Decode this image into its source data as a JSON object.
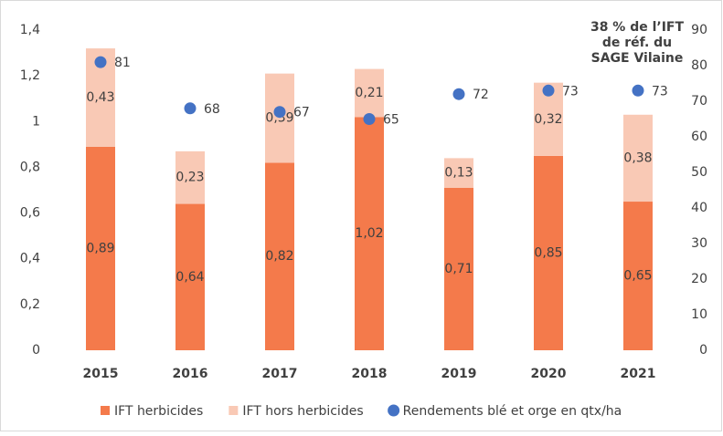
{
  "chart_data": {
    "type": "bar",
    "stacked": true,
    "categories": [
      "2015",
      "2016",
      "2017",
      "2018",
      "2019",
      "2020",
      "2021"
    ],
    "series": [
      {
        "name": "IFT herbicides",
        "color": "#f47a4b",
        "values": [
          0.89,
          0.64,
          0.82,
          1.02,
          0.71,
          0.85,
          0.65
        ],
        "value_labels": [
          "0,89",
          "0,64",
          "0,82",
          "1,02",
          "0,71",
          "0,85",
          "0,65"
        ]
      },
      {
        "name": "IFT hors herbicides",
        "color": "#f9c9b5",
        "values": [
          0.43,
          0.23,
          0.39,
          0.21,
          0.13,
          0.32,
          0.38
        ],
        "value_labels": [
          "0,43",
          "0,23",
          "0,39",
          "0,21",
          "0,13",
          "0,32",
          "0,38"
        ]
      },
      {
        "name": "Rendements blé et orge en qtx/ha",
        "color": "#4472c4",
        "type": "scatter",
        "axis": "y2",
        "values": [
          81,
          68,
          67,
          65,
          72,
          73,
          73
        ]
      }
    ],
    "ylim": [
      0,
      1.4
    ],
    "yticks": [
      0,
      {
        "value": 0.2,
        "label": "0,2"
      },
      {
        "value": 0.4,
        "label": "0,4"
      },
      {
        "value": 0.6,
        "label": "0,6"
      },
      {
        "value": 0.8,
        "label": "0,8"
      },
      1,
      {
        "value": 1.2,
        "label": "1,2"
      },
      {
        "value": 1.4,
        "label": "1,4"
      }
    ],
    "y2lim": [
      0,
      90
    ],
    "y2ticks": [
      0,
      10,
      20,
      30,
      40,
      50,
      60,
      70,
      80,
      90
    ],
    "annotation": [
      "38 % de l’IFT",
      "de réf. du",
      "SAGE Vilaine"
    ],
    "annotation_color": "#f47a4b",
    "grid": false,
    "legend": "bottom"
  }
}
